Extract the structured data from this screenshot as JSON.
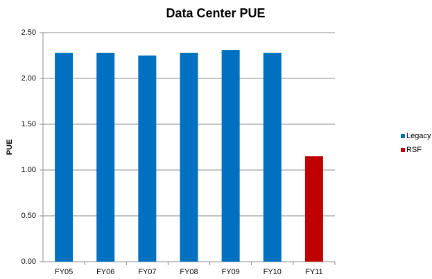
{
  "chart_data": {
    "type": "bar",
    "title": "Data Center PUE",
    "y_label": "PUE",
    "categories": [
      "FY05",
      "FY06",
      "FY07",
      "FY08",
      "FY09",
      "FY10",
      "FY11"
    ],
    "series": [
      {
        "name": "Legacy",
        "color": "#0070c0",
        "values": [
          2.28,
          2.28,
          2.25,
          2.28,
          2.31,
          2.28,
          null
        ]
      },
      {
        "name": "RSF",
        "color": "#c00000",
        "values": [
          null,
          null,
          null,
          null,
          null,
          null,
          1.15
        ]
      }
    ],
    "ylim": [
      0,
      2.5
    ],
    "yticks": [
      {
        "value": 0,
        "label": "0.00"
      },
      {
        "value": 0.5,
        "label": "0.50"
      },
      {
        "value": 1,
        "label": "1.00"
      },
      {
        "value": 1.5,
        "label": "1.50"
      },
      {
        "value": 2,
        "label": "2.00"
      },
      {
        "value": 2.5,
        "label": "2.50"
      }
    ],
    "grid": true,
    "legend": "right"
  }
}
